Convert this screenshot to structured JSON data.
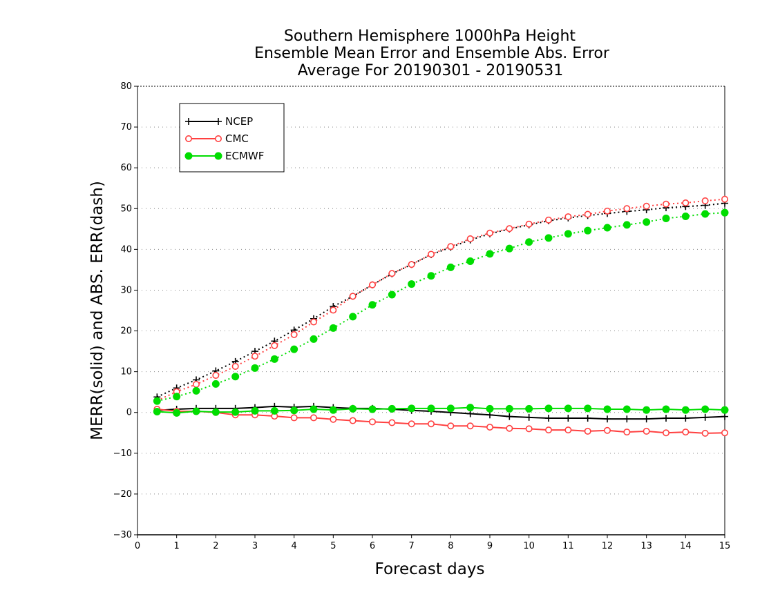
{
  "chart_data": {
    "type": "line",
    "title_lines": [
      "Southern Hemisphere 1000hPa Height",
      "Ensemble Mean Error and Ensemble Abs. Error",
      "Average For 20190301 - 20190531"
    ],
    "xlabel": "Forecast days",
    "ylabel": "MERR(solid) and ABS. ERR(dash)",
    "xlim": [
      0,
      15
    ],
    "ylim": [
      -30,
      80
    ],
    "xticks": [
      0,
      1,
      2,
      3,
      4,
      5,
      6,
      7,
      8,
      9,
      10,
      11,
      12,
      13,
      14,
      15
    ],
    "yticks": [
      -30,
      -20,
      -10,
      0,
      10,
      20,
      30,
      40,
      50,
      60,
      70,
      80
    ],
    "grid": "horizontal dotted",
    "legend_position": "top-left",
    "x": [
      0.5,
      1,
      1.5,
      2,
      2.5,
      3,
      3.5,
      4,
      4.5,
      5,
      5.5,
      6,
      6.5,
      7,
      7.5,
      8,
      8.5,
      9,
      9.5,
      10,
      10.5,
      11,
      11.5,
      12,
      12.5,
      13,
      13.5,
      14,
      14.5,
      15
    ],
    "series": [
      {
        "name": "NCEP",
        "color": "#000000",
        "marker": "plus",
        "mean_error": [
          0.5,
          0.8,
          1.0,
          1.0,
          1.0,
          1.2,
          1.5,
          1.3,
          1.5,
          1.2,
          1.0,
          1.0,
          0.8,
          0.5,
          0.3,
          0.0,
          -0.3,
          -0.6,
          -1.0,
          -1.2,
          -1.4,
          -1.4,
          -1.4,
          -1.6,
          -1.6,
          -1.6,
          -1.4,
          -1.4,
          -1.2,
          -1.0
        ],
        "abs_error": [
          3.8,
          6.0,
          8.0,
          10.2,
          12.5,
          15.0,
          17.5,
          20.2,
          23.0,
          26.0,
          28.5,
          31.3,
          34.0,
          36.3,
          38.7,
          40.5,
          42.3,
          43.8,
          45.0,
          46.0,
          47.0,
          47.7,
          48.3,
          48.8,
          49.3,
          49.7,
          50.2,
          50.5,
          50.8,
          51.3
        ]
      },
      {
        "name": "CMC",
        "color": "#ff4040",
        "marker": "open-circle",
        "mean_error": [
          0.8,
          0.3,
          0.3,
          0.0,
          -0.6,
          -0.6,
          -0.9,
          -1.3,
          -1.3,
          -1.7,
          -2.0,
          -2.3,
          -2.5,
          -2.8,
          -2.8,
          -3.3,
          -3.3,
          -3.6,
          -3.9,
          -4.0,
          -4.3,
          -4.3,
          -4.6,
          -4.4,
          -4.8,
          -4.6,
          -5.0,
          -4.8,
          -5.1,
          -5.0
        ],
        "abs_error": [
          2.9,
          5.1,
          6.9,
          9.1,
          11.3,
          13.8,
          16.4,
          19.1,
          22.2,
          25.1,
          28.5,
          31.3,
          34.1,
          36.3,
          38.8,
          40.7,
          42.6,
          44.0,
          45.1,
          46.2,
          47.2,
          48.0,
          48.6,
          49.4,
          50.0,
          50.6,
          51.1,
          51.4,
          51.9,
          52.3
        ]
      },
      {
        "name": "ECMWF",
        "color": "#00dd00",
        "marker": "filled-circle",
        "mean_error": [
          0.2,
          -0.1,
          0.3,
          0.1,
          0.1,
          0.4,
          0.4,
          0.5,
          0.8,
          0.6,
          0.9,
          0.8,
          0.9,
          1.0,
          1.0,
          1.0,
          1.2,
          0.9,
          0.9,
          0.9,
          1.0,
          1.0,
          1.0,
          0.8,
          0.8,
          0.6,
          0.8,
          0.6,
          0.8,
          0.6
        ],
        "abs_error": [
          2.8,
          3.9,
          5.3,
          7.0,
          8.8,
          10.9,
          13.1,
          15.5,
          18.0,
          20.7,
          23.5,
          26.4,
          28.9,
          31.5,
          33.5,
          35.6,
          37.1,
          38.9,
          40.2,
          41.8,
          42.8,
          43.8,
          44.6,
          45.3,
          46.0,
          46.7,
          47.6,
          48.1,
          48.7,
          49.0
        ]
      }
    ]
  }
}
